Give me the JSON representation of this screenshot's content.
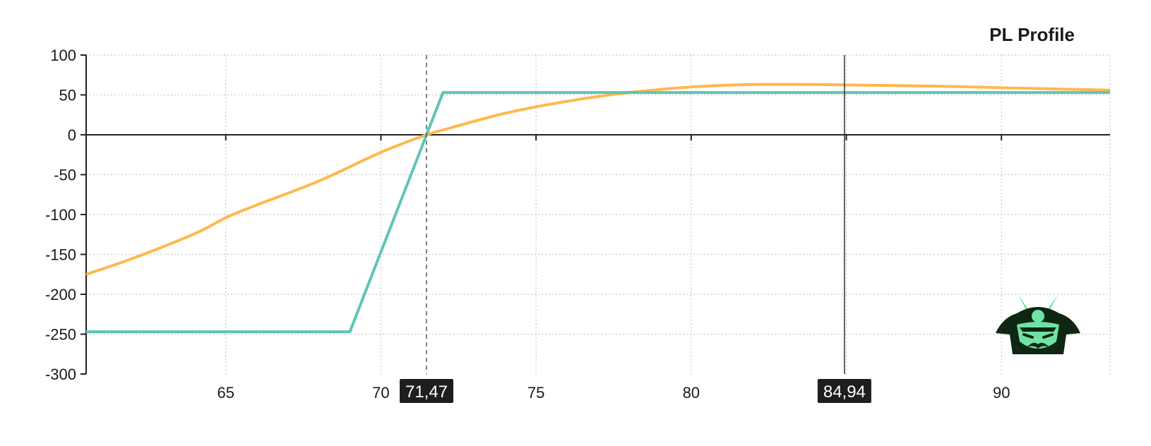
{
  "chart_data": {
    "type": "line",
    "title": "PL Profile",
    "xlabel": "",
    "ylabel": "",
    "xlim": [
      60.5,
      93.5
    ],
    "ylim": [
      -300,
      100
    ],
    "x_ticks": [
      65,
      70,
      75,
      80,
      90
    ],
    "y_ticks": [
      100,
      50,
      0,
      -50,
      -100,
      -150,
      -200,
      -250,
      -300
    ],
    "x_grid": [
      65,
      70,
      75,
      80,
      85,
      90
    ],
    "grid": true,
    "legend": "none",
    "series": [
      {
        "color": "#5fc4b8",
        "x": [
          60.5,
          69.0,
          71.47,
          72.0,
          93.5
        ],
        "y": [
          -247,
          -247,
          0,
          53,
          53
        ]
      },
      {
        "color": "#ffb84d",
        "x": [
          60.5,
          62,
          64,
          65,
          66,
          68,
          70,
          71.47,
          72,
          74,
          76,
          78,
          80,
          82,
          84,
          86,
          88,
          90,
          93.5
        ],
        "y": [
          -175,
          -155,
          -124,
          -104,
          -88,
          -58,
          -22,
          0,
          6,
          27,
          42,
          53,
          60,
          63,
          63,
          62,
          61,
          59,
          56
        ]
      }
    ],
    "markers": [
      {
        "x": 71.47,
        "label": "71,47",
        "style": "dashed"
      },
      {
        "x": 84.94,
        "label": "84,94",
        "style": "solid"
      }
    ]
  },
  "logo": {
    "name": "samurai-helmet-logo",
    "accent": "#6fe3a3",
    "dark": "#0f2612"
  }
}
